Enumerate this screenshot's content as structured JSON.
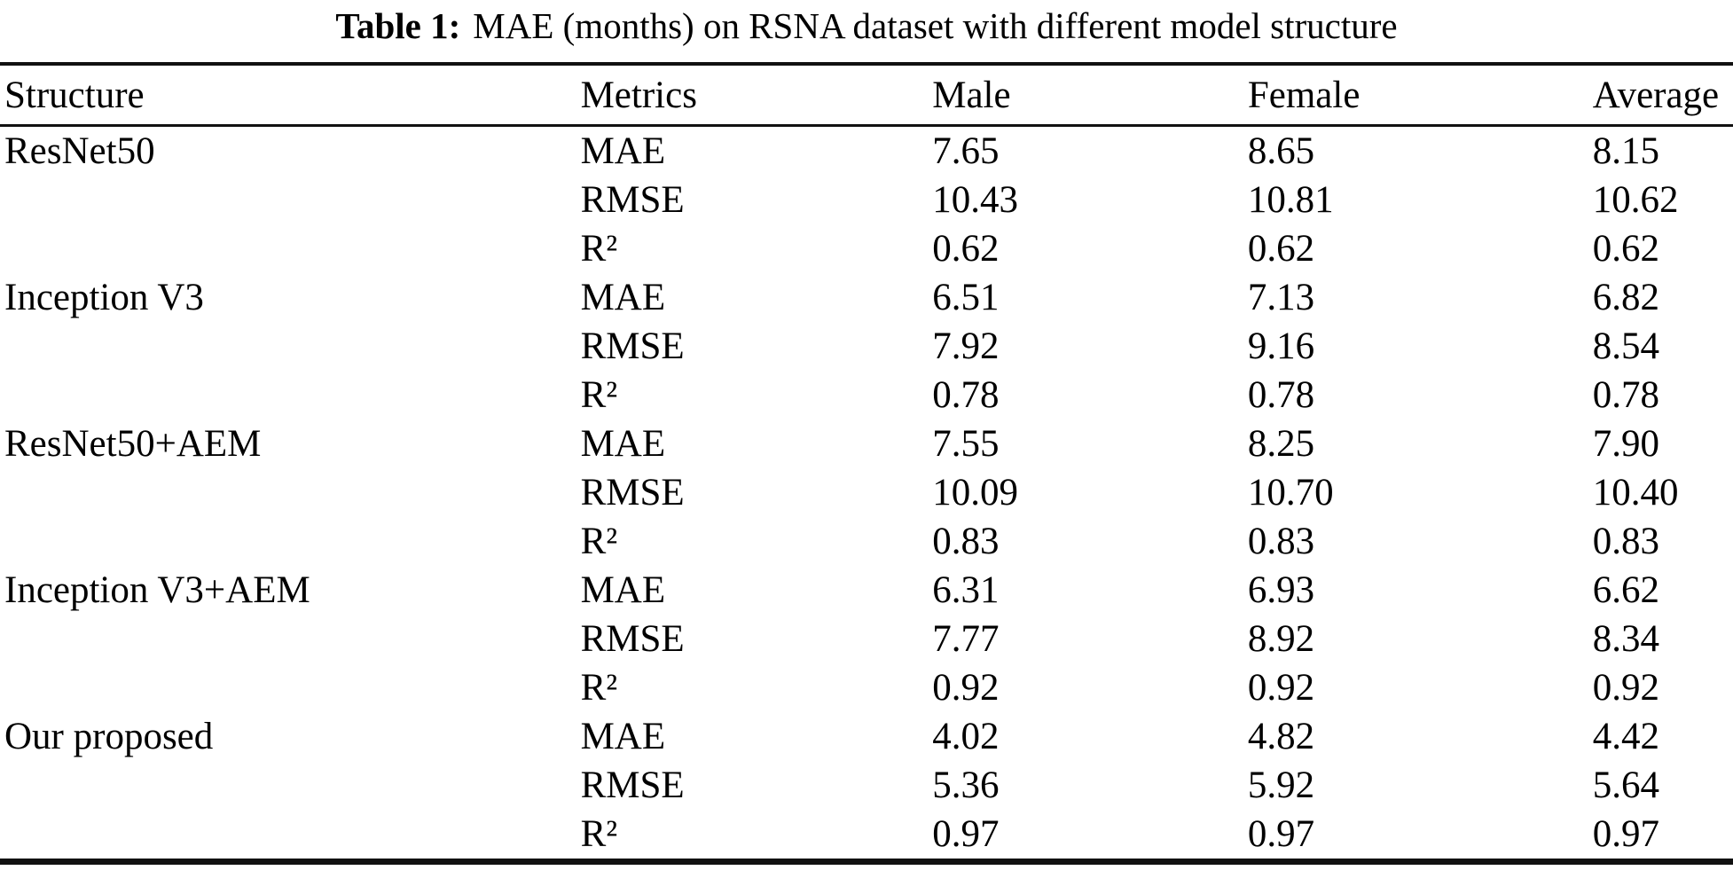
{
  "caption": {
    "label": "Table 1:",
    "text": "MAE (months) on RSNA dataset with different model structure"
  },
  "table": {
    "columns": [
      "Structure",
      "Metrics",
      "Male",
      "Female",
      "Average"
    ],
    "groups": [
      {
        "structure": "ResNet50",
        "rows": [
          {
            "metric": "MAE",
            "male": "7.65",
            "female": "8.65",
            "average": "8.15"
          },
          {
            "metric": "RMSE",
            "male": "10.43",
            "female": "10.81",
            "average": "10.62"
          },
          {
            "metric": "R²",
            "male": "0.62",
            "female": "0.62",
            "average": "0.62"
          }
        ]
      },
      {
        "structure": "Inception V3",
        "rows": [
          {
            "metric": "MAE",
            "male": "6.51",
            "female": "7.13",
            "average": "6.82"
          },
          {
            "metric": "RMSE",
            "male": "7.92",
            "female": "9.16",
            "average": "8.54"
          },
          {
            "metric": "R²",
            "male": "0.78",
            "female": "0.78",
            "average": "0.78"
          }
        ]
      },
      {
        "structure": "ResNet50+AEM",
        "rows": [
          {
            "metric": "MAE",
            "male": "7.55",
            "female": "8.25",
            "average": "7.90"
          },
          {
            "metric": "RMSE",
            "male": "10.09",
            "female": "10.70",
            "average": "10.40"
          },
          {
            "metric": "R²",
            "male": "0.83",
            "female": "0.83",
            "average": "0.83"
          }
        ]
      },
      {
        "structure": "Inception V3+AEM",
        "rows": [
          {
            "metric": "MAE",
            "male": "6.31",
            "female": "6.93",
            "average": "6.62"
          },
          {
            "metric": "RMSE",
            "male": "7.77",
            "female": "8.92",
            "average": "8.34"
          },
          {
            "metric": "R²",
            "male": "0.92",
            "female": "0.92",
            "average": "0.92"
          }
        ]
      },
      {
        "structure": "Our proposed",
        "rows": [
          {
            "metric": "MAE",
            "male": "4.02",
            "female": "4.82",
            "average": "4.42"
          },
          {
            "metric": "RMSE",
            "male": "5.36",
            "female": "5.92",
            "average": "5.64"
          },
          {
            "metric": "R²",
            "male": "0.97",
            "female": "0.97",
            "average": "0.97"
          }
        ]
      }
    ]
  },
  "colors": {
    "text": "#000000",
    "background": "#ffffff",
    "rule": "#111111"
  }
}
